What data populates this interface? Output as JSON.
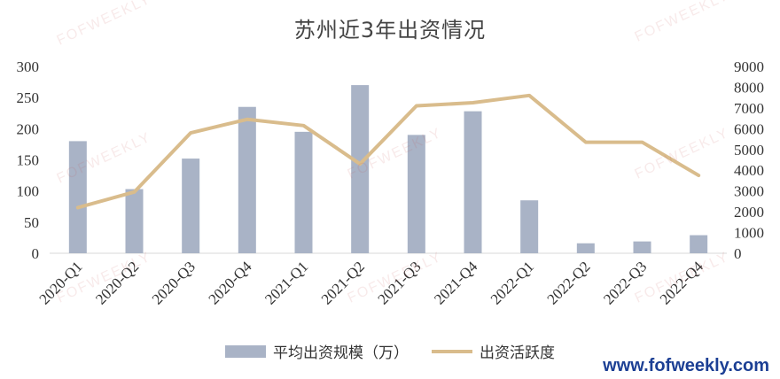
{
  "watermark": "FOFWEEKLY",
  "site_url": "www.fofweekly.com",
  "chart_data": {
    "type": "bar",
    "title": "苏州近3年出资情况",
    "categories": [
      "2020-Q1",
      "2020-Q2",
      "2020-Q3",
      "2020-Q4",
      "2021-Q1",
      "2021-Q2",
      "2021-Q3",
      "2021-Q4",
      "2022-Q1",
      "2022-Q2",
      "2022-Q3",
      "2022-Q4"
    ],
    "series": [
      {
        "name": "平均出资规模（万）",
        "type": "bar",
        "axis": "left",
        "color": "#a9b3c6",
        "values": [
          180,
          103,
          152,
          235,
          195,
          270,
          190,
          228,
          85,
          16,
          19,
          29
        ]
      },
      {
        "name": "出资活跃度",
        "type": "line",
        "axis": "right",
        "color": "#d9bc8c",
        "values": [
          2200,
          2950,
          5800,
          6450,
          6150,
          4300,
          7100,
          7250,
          7600,
          5350,
          5350,
          3750
        ]
      }
    ],
    "y_left": {
      "min": 0,
      "max": 300,
      "ticks": [
        0,
        50,
        100,
        150,
        200,
        250,
        300
      ]
    },
    "y_right": {
      "min": 0,
      "max": 9000,
      "ticks": [
        0,
        1000,
        2000,
        3000,
        4000,
        5000,
        6000,
        7000,
        8000,
        9000
      ]
    },
    "grid": false,
    "legend_position": "bottom"
  }
}
